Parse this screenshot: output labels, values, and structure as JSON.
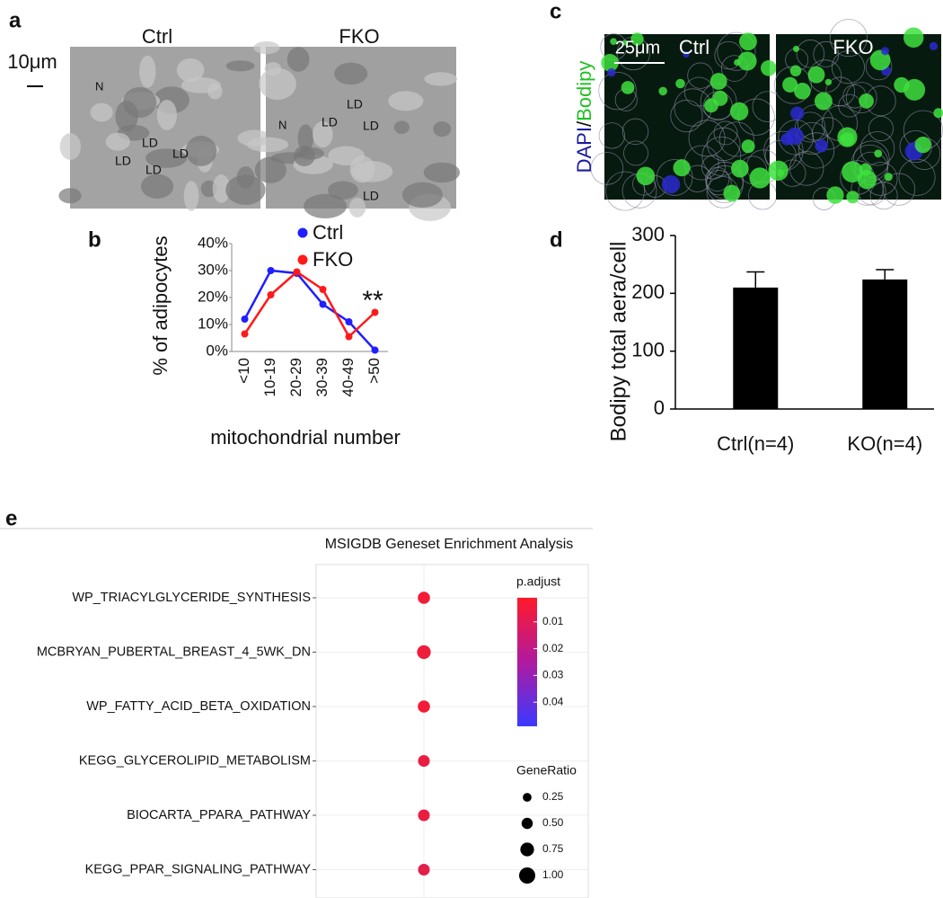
{
  "panel_labels": [
    "a",
    "b",
    "c",
    "d",
    "e"
  ],
  "images": {
    "a": {
      "scale_bar": "10μm",
      "columns": [
        "Ctrl",
        "FKO"
      ],
      "labels_ctrl": [
        "N",
        "LD",
        "LD",
        "LD",
        "LD"
      ],
      "labels_fko": [
        "N",
        "LD",
        "LD",
        "LD",
        "LD"
      ]
    },
    "c": {
      "scale_bar": "25μm",
      "columns": [
        "Ctrl",
        "FKO"
      ],
      "stain": [
        "DAPI",
        "/",
        "Bodipy"
      ]
    }
  },
  "chart_data": [
    {
      "type": "line",
      "ylabel": "% of adipocytes",
      "xlabel": "mitochondrial number",
      "categories": [
        "<10",
        "10-19",
        "20-29",
        "30-39",
        "40-49",
        ">50"
      ],
      "series": [
        {
          "name": "Ctrl",
          "color": "#1f1fff",
          "values": [
            12,
            30,
            29,
            17.5,
            11,
            0.5
          ]
        },
        {
          "name": "FKO",
          "color": "#ff1a1a",
          "values": [
            6.5,
            21,
            29.5,
            23,
            5.5,
            14.5
          ]
        }
      ],
      "ylim": [
        0,
        40
      ],
      "yticks": [
        {
          "value": 0,
          "label": "0%"
        },
        {
          "value": 10,
          "label": "10%"
        },
        {
          "value": 20,
          "label": "20%"
        },
        {
          "value": 30,
          "label": "30%"
        },
        {
          "value": 40,
          "label": "40%"
        }
      ],
      "annotation": "**"
    },
    {
      "type": "bar",
      "ylabel": "Bodipy total aera/cell",
      "categories": [
        "Ctrl(n=4)",
        "KO(n=4)"
      ],
      "values": [
        210,
        224
      ],
      "errors": [
        27,
        17
      ],
      "color": "#000000",
      "ylim": [
        0,
        300
      ],
      "yticks": [
        0,
        100,
        200,
        300
      ]
    },
    {
      "type": "dot",
      "title": "MSIGDB Geneset Enrichment Analysis",
      "categories": [
        "WP_TRIACYLGLYCERIDE_SYNTHESIS",
        "MCBRYAN_PUBERTAL_BREAST_4_5WK_DN",
        "WP_FATTY_ACID_BETA_OXIDATION",
        "KEGG_GLYCEROLIPID_METABOLISM",
        "BIOCARTA_PPARA_PATHWAY",
        "KEGG_PPAR_SIGNALING_PATHWAY"
      ],
      "p_adjust": [
        0.004,
        0.005,
        0.004,
        0.006,
        0.006,
        0.008
      ],
      "gene_ratio": [
        0.6,
        0.75,
        0.6,
        0.55,
        0.55,
        0.55
      ],
      "color_legend_title": "p.adjust",
      "color_lim": [
        0.001,
        0.049
      ],
      "color_ticks": [
        0.01,
        0.02,
        0.03,
        0.04
      ],
      "color_range": [
        "#ff1a2a",
        "#3a3aff"
      ],
      "size_legend_title": "GeneRatio",
      "size_ticks": [
        0.25,
        {
          "value": 0.5,
          "label": "0.50"
        },
        0.75,
        {
          "value": 1,
          "label": "1.00"
        }
      ]
    }
  ]
}
